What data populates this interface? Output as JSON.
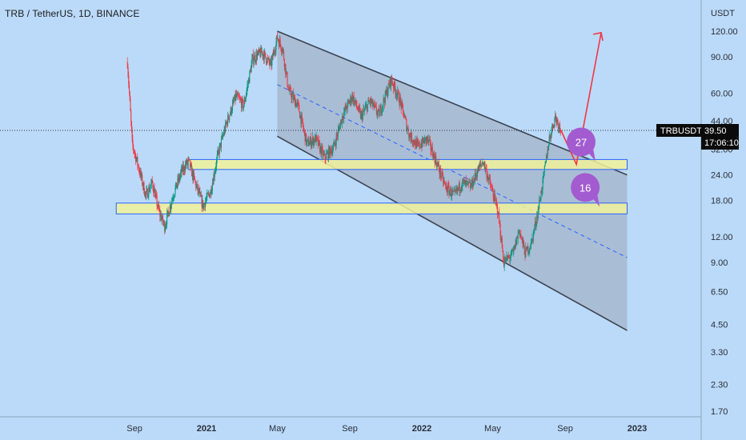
{
  "header": {
    "title": "TRB / TetherUS, 1D, BINANCE"
  },
  "price_tag": {
    "symbol": "TRBUSDT",
    "price": "39.50",
    "countdown": "17:06:10"
  },
  "colors": {
    "background": "#bbdaf9",
    "up": "#089981",
    "down": "#f23645",
    "zone_fill": "#f2f29a",
    "zone_border": "#2962ff",
    "channel_fill": "#9aa6b8",
    "bubble": "#a35bd0",
    "projection": "#f23645"
  },
  "chart_data": {
    "type": "candlestick",
    "scale": "log",
    "unit": "USDT",
    "y_ticks": [
      "120.00",
      "90.00",
      "60.00",
      "44.00",
      "32.00",
      "24.00",
      "18.00",
      "12.00",
      "9.00",
      "6.50",
      "4.50",
      "3.30",
      "2.30",
      "1.70"
    ],
    "x_ticks": [
      {
        "label": "Sep",
        "date": "2020-09-01"
      },
      {
        "label": "2021",
        "date": "2021-01-01"
      },
      {
        "label": "May",
        "date": "2021-05-01"
      },
      {
        "label": "Sep",
        "date": "2021-09-01"
      },
      {
        "label": "2022",
        "date": "2022-01-01"
      },
      {
        "label": "May",
        "date": "2022-05-01"
      },
      {
        "label": "Sep",
        "date": "2022-09-01"
      },
      {
        "label": "2023",
        "date": "2023-01-01"
      }
    ],
    "price_path": [
      [
        "2020-08-20",
        85
      ],
      [
        "2020-08-28",
        34
      ],
      [
        "2020-09-08",
        26
      ],
      [
        "2020-09-20",
        19
      ],
      [
        "2020-10-01",
        22
      ],
      [
        "2020-10-12",
        16
      ],
      [
        "2020-10-22",
        13.5
      ],
      [
        "2020-11-05",
        19
      ],
      [
        "2020-11-20",
        25
      ],
      [
        "2020-12-01",
        28
      ],
      [
        "2020-12-15",
        21
      ],
      [
        "2020-12-26",
        17
      ],
      [
        "2021-01-08",
        20
      ],
      [
        "2021-01-20",
        30
      ],
      [
        "2021-02-05",
        44
      ],
      [
        "2021-02-20",
        58
      ],
      [
        "2021-03-05",
        52
      ],
      [
        "2021-03-20",
        88
      ],
      [
        "2021-04-05",
        95
      ],
      [
        "2021-04-20",
        82
      ],
      [
        "2021-05-01",
        112
      ],
      [
        "2021-05-10",
        98
      ],
      [
        "2021-05-20",
        62
      ],
      [
        "2021-06-05",
        52
      ],
      [
        "2021-06-20",
        34
      ],
      [
        "2021-07-05",
        36
      ],
      [
        "2021-07-20",
        29
      ],
      [
        "2021-08-05",
        33
      ],
      [
        "2021-08-20",
        47
      ],
      [
        "2021-09-05",
        58
      ],
      [
        "2021-09-20",
        46
      ],
      [
        "2021-10-05",
        55
      ],
      [
        "2021-10-20",
        47
      ],
      [
        "2021-11-10",
        70
      ],
      [
        "2021-11-25",
        55
      ],
      [
        "2021-12-10",
        38
      ],
      [
        "2021-12-25",
        33
      ],
      [
        "2022-01-10",
        36
      ],
      [
        "2022-01-25",
        28
      ],
      [
        "2022-02-10",
        21
      ],
      [
        "2022-02-25",
        19
      ],
      [
        "2022-03-10",
        22
      ],
      [
        "2022-03-25",
        21
      ],
      [
        "2022-04-05",
        25
      ],
      [
        "2022-04-15",
        28
      ],
      [
        "2022-04-28",
        21
      ],
      [
        "2022-05-10",
        16
      ],
      [
        "2022-05-20",
        9
      ],
      [
        "2022-06-05",
        10
      ],
      [
        "2022-06-15",
        13
      ],
      [
        "2022-06-25",
        10
      ],
      [
        "2022-07-05",
        11
      ],
      [
        "2022-07-15",
        15
      ],
      [
        "2022-07-25",
        22
      ],
      [
        "2022-08-05",
        36
      ],
      [
        "2022-08-15",
        46
      ],
      [
        "2022-08-25",
        39.5
      ]
    ],
    "zones": [
      {
        "from": "2020-12-01",
        "to": "2022-12-15",
        "low": 25.5,
        "high": 28.5,
        "label": "27"
      },
      {
        "from": "2020-08-01",
        "to": "2022-12-15",
        "low": 15.5,
        "high": 17.5,
        "label": "16"
      }
    ],
    "channel": {
      "upper": [
        [
          "2021-05-01",
          120
        ],
        [
          "2022-12-15",
          24
        ]
      ],
      "lower": [
        [
          "2021-05-01",
          37
        ],
        [
          "2022-12-15",
          4.2
        ]
      ],
      "midline": [
        [
          "2021-05-01",
          66
        ],
        [
          "2022-12-15",
          9.5
        ]
      ]
    },
    "projection": [
      [
        "2022-08-25",
        39.5
      ],
      [
        "2022-09-20",
        27
      ],
      [
        "2022-11-01",
        118
      ],
      [
        "2022-11-25",
        110
      ]
    ]
  }
}
